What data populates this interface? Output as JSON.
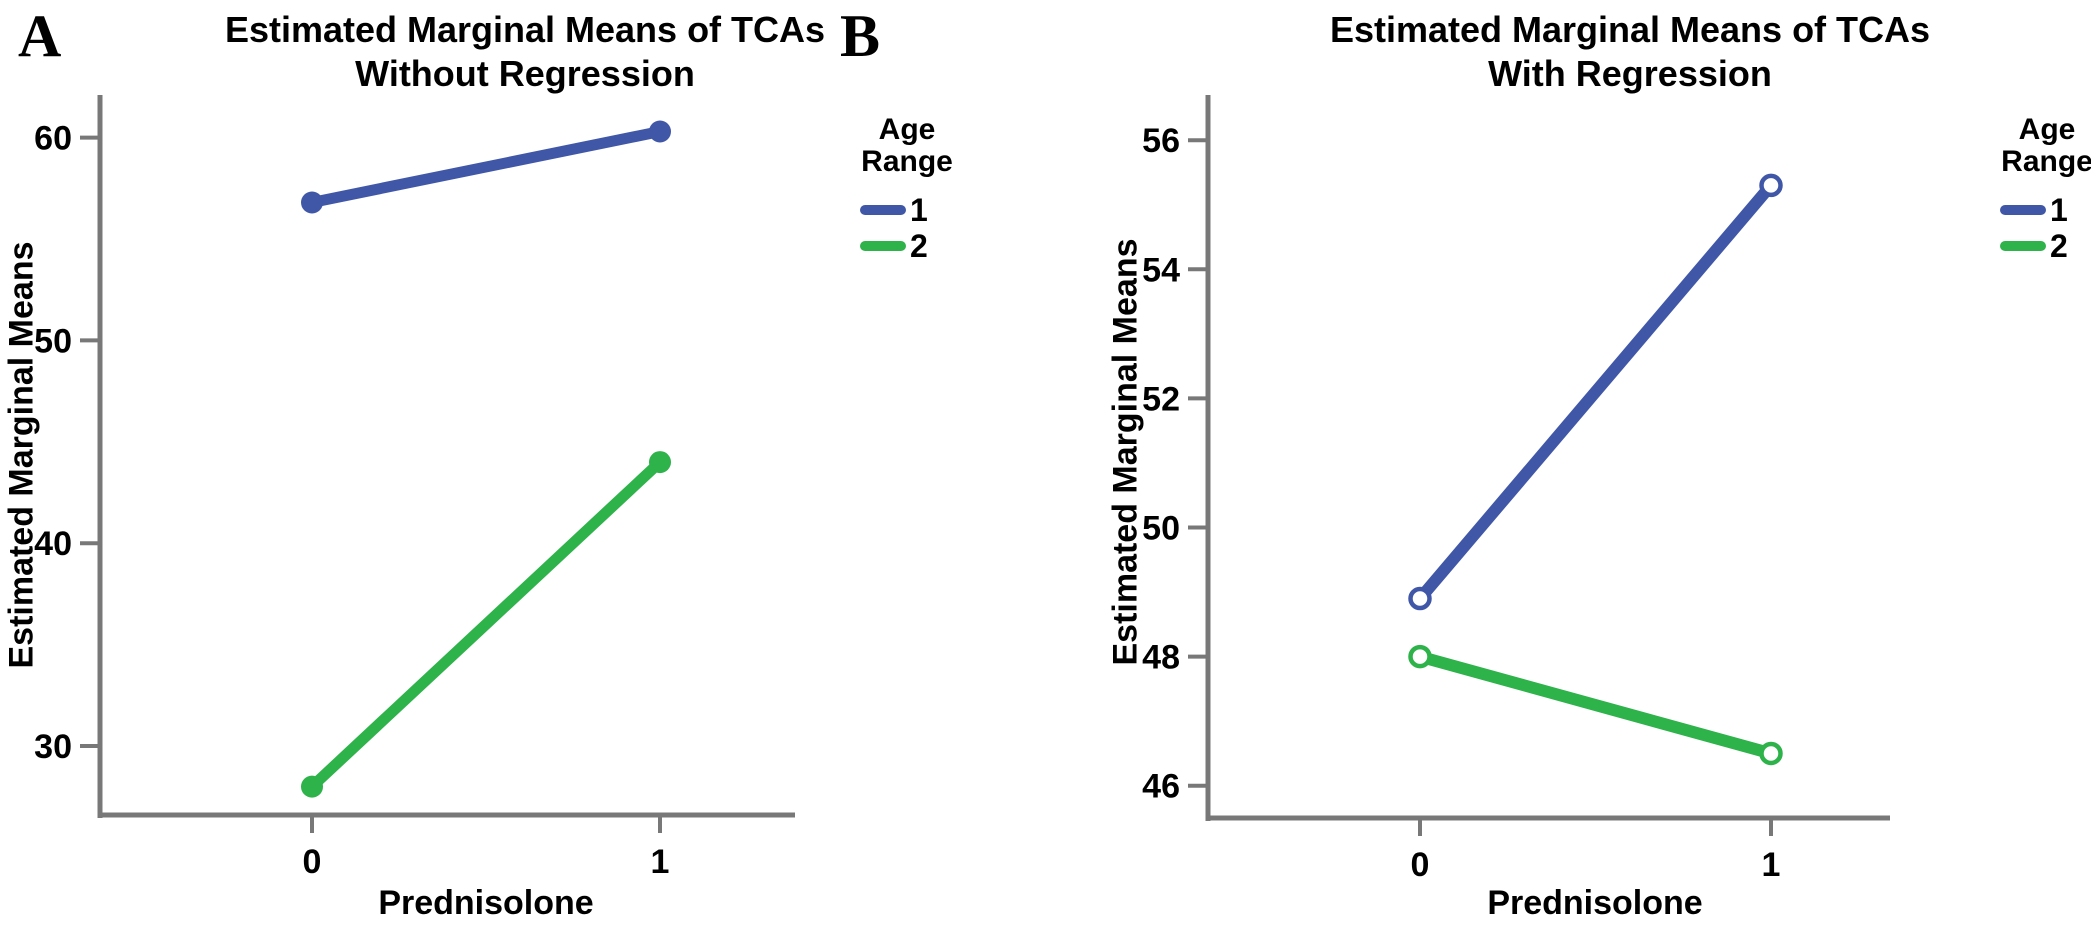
{
  "colors": {
    "axis": "#787878",
    "blue": "#4057A8",
    "green": "#2EB24A",
    "text": "#000000"
  },
  "panels": [
    {
      "panel_label": "A",
      "title_line1": "Estimated Marginal Means of TCAs",
      "title_line2": "Without Regression",
      "ylabel": "Estimated Marginal Means",
      "xlabel": "Prednisolone",
      "legend": {
        "title_line1": "Age",
        "title_line2": "Range",
        "items": [
          {
            "label": "1",
            "color": "#4057A8"
          },
          {
            "label": "2",
            "color": "#2EB24A"
          }
        ]
      }
    },
    {
      "panel_label": "B",
      "title_line1": "Estimated Marginal Means of TCAs",
      "title_line2": "With Regression",
      "ylabel": "Estimated Marginal Means",
      "xlabel": "Prednisolone",
      "legend": {
        "title_line1": "Age",
        "title_line2": "Range",
        "items": [
          {
            "label": "1",
            "color": "#4057A8"
          },
          {
            "label": "2",
            "color": "#2EB24A"
          }
        ]
      }
    }
  ],
  "chart_data": [
    {
      "type": "line",
      "panel": "A",
      "title": "Estimated Marginal Means of TCAs — Without Regression",
      "xlabel": "Prednisolone",
      "ylabel": "Estimated Marginal Means",
      "legend_title": "Age Range",
      "legend_position": "right",
      "grid": false,
      "categories": [
        "0",
        "1"
      ],
      "yticks": [
        30,
        40,
        50,
        60
      ],
      "ylim": [
        26.6,
        62.1
      ],
      "series": [
        {
          "name": "1",
          "color": "#4057A8",
          "marker": "filled",
          "values": [
            56.8,
            60.3
          ]
        },
        {
          "name": "2",
          "color": "#2EB24A",
          "marker": "filled",
          "values": [
            28.0,
            44.0
          ]
        }
      ]
    },
    {
      "type": "line",
      "panel": "B",
      "title": "Estimated Marginal Means of TCAs — With Regression",
      "xlabel": "Prednisolone",
      "ylabel": "Estimated Marginal Means",
      "legend_title": "Age Range",
      "legend_position": "right",
      "grid": false,
      "categories": [
        "0",
        "1"
      ],
      "yticks": [
        46,
        48,
        50,
        52,
        54,
        56
      ],
      "ylim": [
        45.5,
        56.7
      ],
      "series": [
        {
          "name": "1",
          "color": "#4057A8",
          "marker": "open",
          "values": [
            48.9,
            55.3
          ]
        },
        {
          "name": "2",
          "color": "#2EB24A",
          "marker": "open",
          "values": [
            48.0,
            46.5
          ]
        }
      ]
    }
  ]
}
